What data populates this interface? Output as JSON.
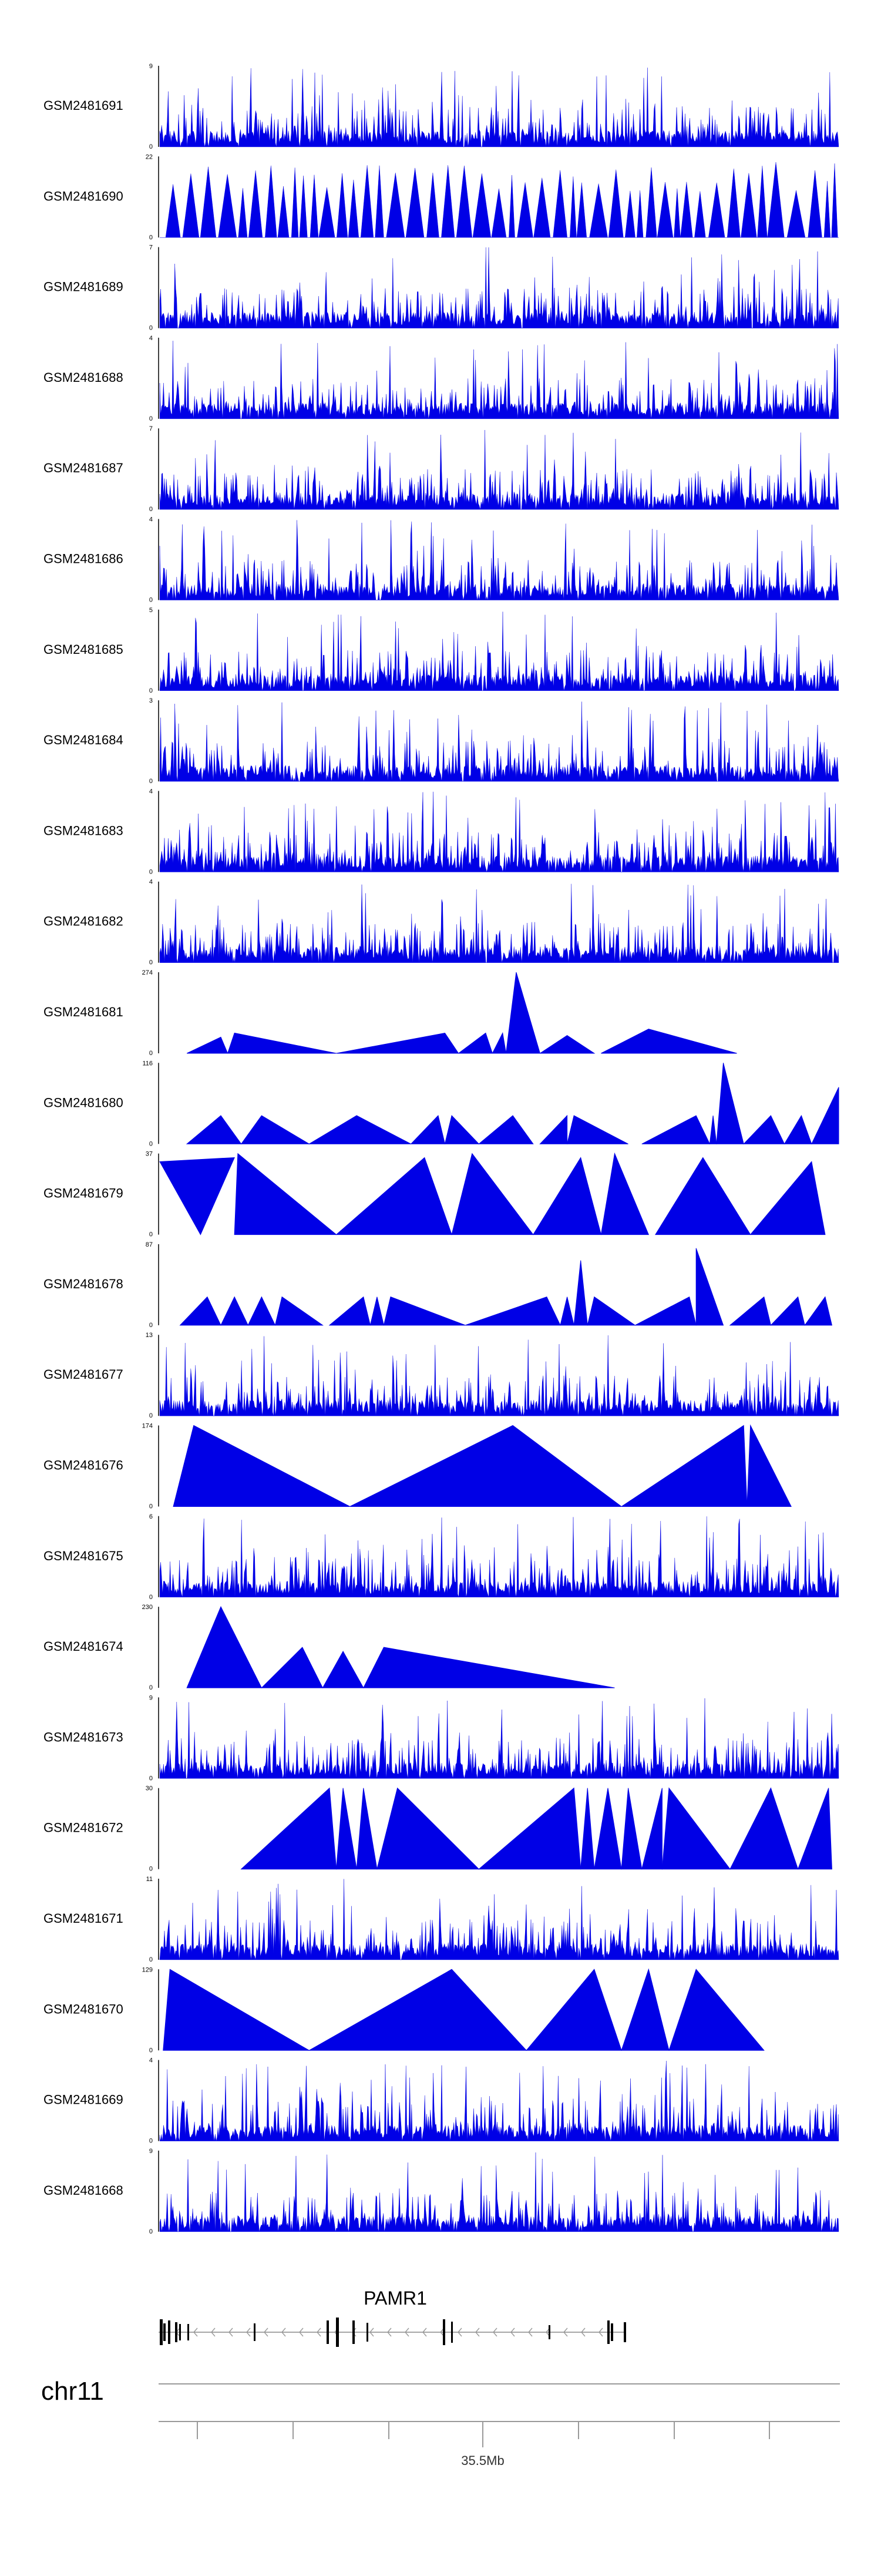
{
  "chart_data": {
    "type": "area",
    "tracks": [
      {
        "label": "GSM2481691",
        "ymax": 9,
        "pattern": "noise",
        "segments": []
      },
      {
        "label": "GSM2481690",
        "ymax": 22,
        "pattern": "triangles",
        "segments": []
      },
      {
        "label": "GSM2481689",
        "ymax": 7,
        "pattern": "noise",
        "segments": []
      },
      {
        "label": "GSM2481688",
        "ymax": 4,
        "pattern": "noise",
        "segments": []
      },
      {
        "label": "GSM2481687",
        "ymax": 7,
        "pattern": "noise",
        "segments": []
      },
      {
        "label": "GSM2481686",
        "ymax": 4,
        "pattern": "noise",
        "segments": []
      },
      {
        "label": "GSM2481685",
        "ymax": 5,
        "pattern": "noise",
        "segments": []
      },
      {
        "label": "GSM2481684",
        "ymax": 3,
        "pattern": "noise",
        "segments": []
      },
      {
        "label": "GSM2481683",
        "ymax": 4,
        "pattern": "noise",
        "segments": []
      },
      {
        "label": "GSM2481682",
        "ymax": 4,
        "pattern": "noise",
        "segments": []
      },
      {
        "label": "GSM2481681",
        "ymax": 274,
        "pattern": "segments",
        "segments": [
          [
            0.04,
            0,
            0.09,
            0.2,
            0.1,
            0
          ],
          [
            0.1,
            0,
            0.11,
            0.25,
            0.26,
            0
          ],
          [
            0.26,
            0,
            0.42,
            0.25,
            0.44,
            0
          ],
          [
            0.44,
            0,
            0.48,
            0.25,
            0.49,
            0
          ],
          [
            0.49,
            0,
            0.505,
            0.25,
            0.51,
            0
          ],
          [
            0.51,
            0,
            0.525,
            1,
            0.56,
            0
          ],
          [
            0.56,
            0,
            0.6,
            0.22,
            0.64,
            0
          ],
          [
            0.65,
            0,
            0.72,
            0.3,
            0.85,
            0
          ]
        ]
      },
      {
        "label": "GSM2481680",
        "ymax": 116,
        "pattern": "segments",
        "segments": [
          [
            0.04,
            0,
            0.09,
            0.35,
            0.12,
            0
          ],
          [
            0.12,
            0,
            0.15,
            0.35,
            0.22,
            0
          ],
          [
            0.22,
            0,
            0.29,
            0.35,
            0.37,
            0
          ],
          [
            0.37,
            0,
            0.41,
            0.35,
            0.42,
            0
          ],
          [
            0.42,
            0,
            0.43,
            0.35,
            0.47,
            0
          ],
          [
            0.47,
            0,
            0.52,
            0.35,
            0.55,
            0
          ],
          [
            0.56,
            0,
            0.6,
            0.35,
            0.6,
            0
          ],
          [
            0.6,
            0,
            0.61,
            0.35,
            0.69,
            0
          ],
          [
            0.71,
            0,
            0.79,
            0.35,
            0.81,
            0
          ],
          [
            0.81,
            0,
            0.815,
            0.35,
            0.82,
            0
          ],
          [
            0.82,
            0,
            0.83,
            1,
            0.86,
            0
          ],
          [
            0.86,
            0,
            0.9,
            0.35,
            0.92,
            0
          ],
          [
            0.92,
            0,
            0.945,
            0.35,
            0.96,
            0
          ],
          [
            0.96,
            0,
            1.0,
            0.7,
            1.0,
            0
          ]
        ]
      },
      {
        "label": "GSM2481679",
        "ymax": 37,
        "pattern": "segments",
        "segments": [
          [
            0,
            0.9,
            0.06,
            0,
            0.11,
            0.95
          ],
          [
            0.11,
            0,
            0.115,
            1,
            0.26,
            0
          ],
          [
            0.26,
            0,
            0.39,
            0.95,
            0.43,
            0
          ],
          [
            0.43,
            0,
            0.46,
            1,
            0.55,
            0
          ],
          [
            0.55,
            0,
            0.62,
            0.95,
            0.65,
            0
          ],
          [
            0.65,
            0,
            0.67,
            1,
            0.72,
            0
          ],
          [
            0.73,
            0,
            0.8,
            0.95,
            0.87,
            0
          ],
          [
            0.87,
            0,
            0.96,
            0.9,
            0.98,
            0
          ]
        ]
      },
      {
        "label": "GSM2481678",
        "ymax": 87,
        "pattern": "segments",
        "segments": [
          [
            0.03,
            0,
            0.07,
            0.35,
            0.09,
            0
          ],
          [
            0.09,
            0,
            0.11,
            0.35,
            0.13,
            0
          ],
          [
            0.13,
            0,
            0.15,
            0.35,
            0.17,
            0
          ],
          [
            0.17,
            0,
            0.18,
            0.35,
            0.24,
            0
          ],
          [
            0.25,
            0,
            0.3,
            0.35,
            0.31,
            0
          ],
          [
            0.31,
            0,
            0.32,
            0.35,
            0.33,
            0
          ],
          [
            0.33,
            0,
            0.34,
            0.35,
            0.45,
            0
          ],
          [
            0.45,
            0,
            0.57,
            0.35,
            0.59,
            0
          ],
          [
            0.59,
            0,
            0.6,
            0.35,
            0.61,
            0
          ],
          [
            0.61,
            0,
            0.62,
            0.8,
            0.63,
            0
          ],
          [
            0.63,
            0,
            0.64,
            0.35,
            0.7,
            0
          ],
          [
            0.7,
            0,
            0.78,
            0.35,
            0.79,
            0
          ],
          [
            0.79,
            0,
            0.79,
            0.95,
            0.83,
            0
          ],
          [
            0.84,
            0,
            0.89,
            0.35,
            0.9,
            0
          ],
          [
            0.9,
            0,
            0.94,
            0.35,
            0.95,
            0
          ],
          [
            0.95,
            0,
            0.98,
            0.35,
            0.99,
            0
          ]
        ]
      },
      {
        "label": "GSM2481677",
        "ymax": 13,
        "pattern": "noise",
        "segments": []
      },
      {
        "label": "GSM2481676",
        "ymax": 174,
        "pattern": "segments",
        "segments": [
          [
            0.02,
            0,
            0.05,
            1,
            0.28,
            0
          ],
          [
            0.28,
            0,
            0.52,
            1,
            0.68,
            0
          ],
          [
            0.68,
            0,
            0.86,
            1,
            0.865,
            0
          ],
          [
            0.865,
            0,
            0.87,
            1,
            0.93,
            0
          ]
        ]
      },
      {
        "label": "GSM2481675",
        "ymax": 6,
        "pattern": "noise",
        "segments": []
      },
      {
        "label": "GSM2481674",
        "ymax": 230,
        "pattern": "segments",
        "segments": [
          [
            0.04,
            0,
            0.09,
            1,
            0.15,
            0
          ],
          [
            0.15,
            0,
            0.21,
            0.5,
            0.24,
            0
          ],
          [
            0.24,
            0,
            0.27,
            0.45,
            0.3,
            0
          ],
          [
            0.3,
            0,
            0.33,
            0.5,
            0.67,
            0
          ]
        ]
      },
      {
        "label": "GSM2481673",
        "ymax": 9,
        "pattern": "noise",
        "segments": []
      },
      {
        "label": "GSM2481672",
        "ymax": 30,
        "pattern": "segments",
        "segments": [
          [
            0.12,
            0,
            0.25,
            1,
            0.26,
            0
          ],
          [
            0.26,
            0,
            0.27,
            1,
            0.29,
            0
          ],
          [
            0.29,
            0,
            0.3,
            1,
            0.32,
            0
          ],
          [
            0.32,
            0,
            0.35,
            1,
            0.47,
            0
          ],
          [
            0.47,
            0,
            0.61,
            1,
            0.62,
            0
          ],
          [
            0.62,
            0,
            0.63,
            1,
            0.64,
            0
          ],
          [
            0.64,
            0,
            0.66,
            1,
            0.68,
            0
          ],
          [
            0.68,
            0,
            0.69,
            1,
            0.71,
            0
          ],
          [
            0.71,
            0,
            0.74,
            1,
            0.74,
            0
          ],
          [
            0.74,
            0,
            0.75,
            1,
            0.84,
            0
          ],
          [
            0.84,
            0,
            0.9,
            1,
            0.94,
            0
          ],
          [
            0.94,
            0,
            0.985,
            1,
            0.99,
            0
          ]
        ]
      },
      {
        "label": "GSM2481671",
        "ymax": 11,
        "pattern": "noise",
        "segments": []
      },
      {
        "label": "GSM2481670",
        "ymax": 129,
        "pattern": "segments",
        "segments": [
          [
            0.005,
            0,
            0.015,
            1,
            0.22,
            0
          ],
          [
            0.22,
            0,
            0.43,
            1,
            0.54,
            0
          ],
          [
            0.54,
            0,
            0.64,
            1,
            0.68,
            0
          ],
          [
            0.68,
            0,
            0.72,
            1,
            0.75,
            0
          ],
          [
            0.75,
            0,
            0.79,
            1,
            0.89,
            0
          ]
        ]
      },
      {
        "label": "GSM2481669",
        "ymax": 4,
        "pattern": "noise",
        "segments": []
      },
      {
        "label": "GSM2481668",
        "ymax": 9,
        "pattern": "noise",
        "segments": []
      }
    ],
    "gene": {
      "name": "PAMR1",
      "strand": "-"
    },
    "chromosome": "chr11",
    "axis": {
      "tick_label": "35.5Mb"
    }
  }
}
